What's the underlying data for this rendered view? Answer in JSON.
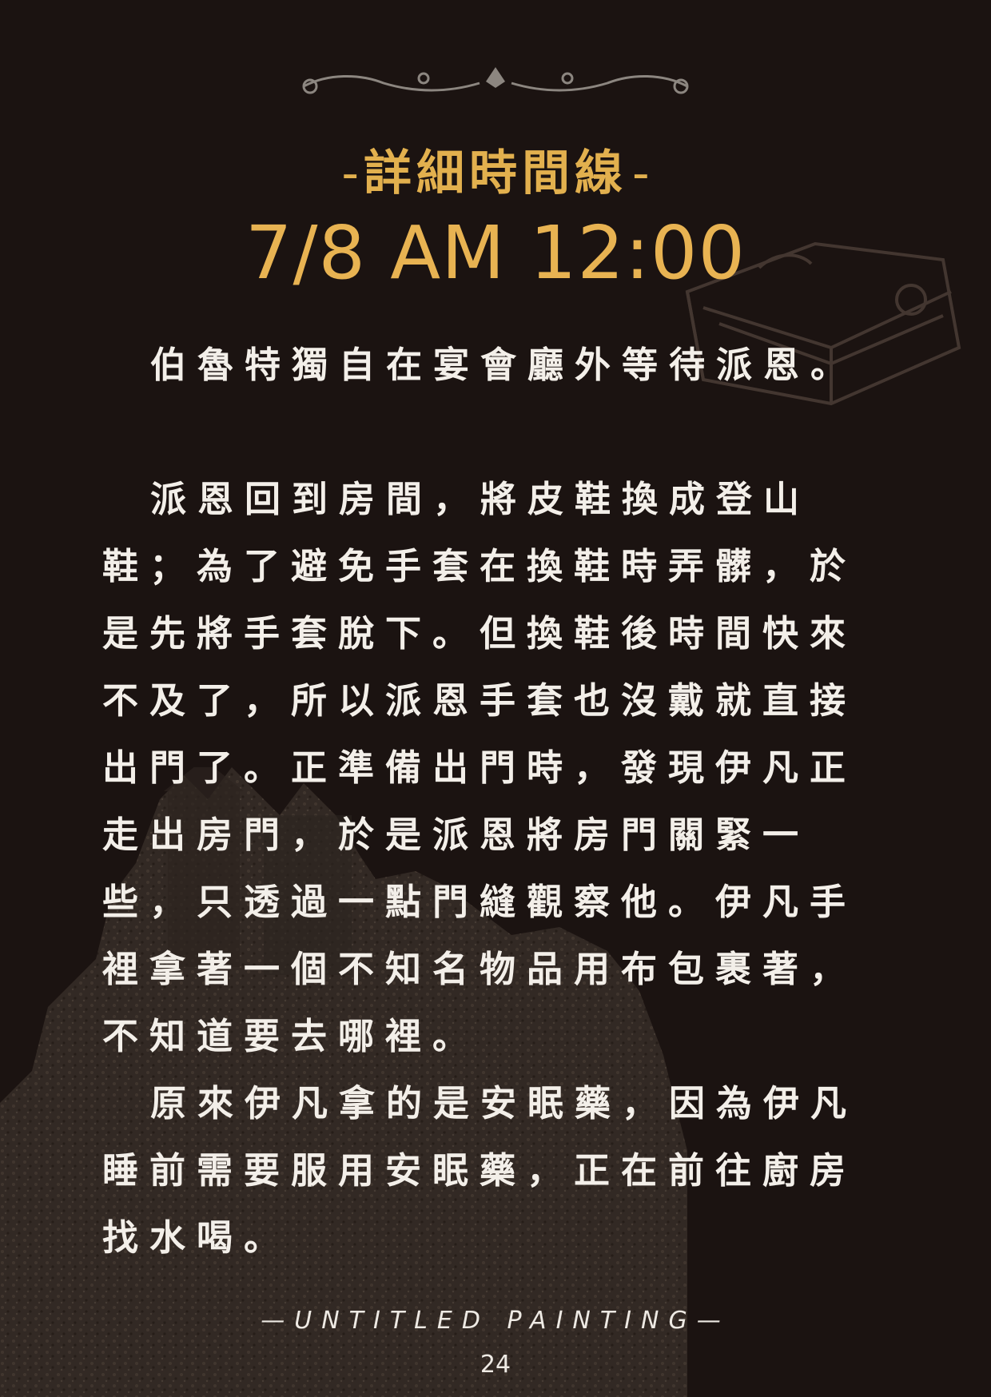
{
  "header": {
    "section_title": "詳細時間線",
    "dash": "-",
    "timestamp": "7/8 AM 12:00"
  },
  "body": {
    "paragraphs": [
      "伯魯特獨自在宴會廳外等待派恩。",
      "派恩回到房間，將皮鞋換成登山鞋；為了避免手套在換鞋時弄髒，於是先將手套脫下。但換鞋後時間快來不及了，所以派恩手套也沒戴就直接出門了。正準備出門時，發現伊凡正走出房門，於是派恩將房門關緊一些，只透過一點門縫觀察他。伊凡手裡拿著一個不知名物品用布包裹著，不知道要去哪裡。",
      "原來伊凡拿的是安眠藥，因為伊凡睡前需要服用安眠藥，正在前往廚房找水喝。"
    ]
  },
  "footer": {
    "title": "—UNTITLED PAINTING—",
    "page_number": "24"
  },
  "colors": {
    "background": "#1b1311",
    "accent_gold": "#e2b04e",
    "text": "#f3efe9"
  },
  "icons": [
    "ornament-divider-icon",
    "book-illustration-icon",
    "castle-illustration-icon"
  ]
}
